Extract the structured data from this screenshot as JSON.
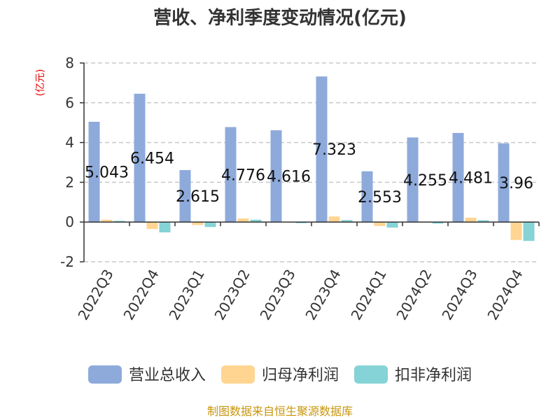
{
  "chart_data": {
    "type": "bar",
    "title": "营收、净利季度变动情况(亿元)",
    "unit_label": "(亿元)",
    "xlabel": "",
    "ylabel": "",
    "categories": [
      "2022Q3",
      "2022Q4",
      "2023Q1",
      "2023Q2",
      "2023Q3",
      "2023Q4",
      "2024Q1",
      "2024Q2",
      "2024Q3",
      "2024Q4"
    ],
    "series": [
      {
        "name": "营业总收入",
        "color": "#8eaadb",
        "values": [
          5.043,
          6.454,
          2.615,
          4.776,
          4.616,
          7.323,
          2.553,
          4.255,
          4.481,
          3.96
        ],
        "labels": [
          "5.043",
          "6.454",
          "2.615",
          "4.776",
          "4.616",
          "7.323",
          "2.553",
          "4.255",
          "4.481",
          "3.96"
        ]
      },
      {
        "name": "归母净利润",
        "color": "#ffd591",
        "values": [
          0.12,
          -0.35,
          -0.15,
          0.18,
          0.02,
          0.28,
          -0.2,
          0.03,
          0.22,
          -0.9
        ]
      },
      {
        "name": "扣非净利润",
        "color": "#85d3d6",
        "values": [
          0.06,
          -0.52,
          -0.25,
          0.12,
          -0.06,
          0.1,
          -0.28,
          -0.08,
          0.09,
          -0.95
        ]
      }
    ],
    "ylim": [
      -2,
      8
    ],
    "yticks": [
      "-2",
      "0",
      "2",
      "4",
      "6",
      "8"
    ],
    "grid": true,
    "legend_position": "bottom",
    "source": "制图数据来自恒生聚源数据库"
  }
}
